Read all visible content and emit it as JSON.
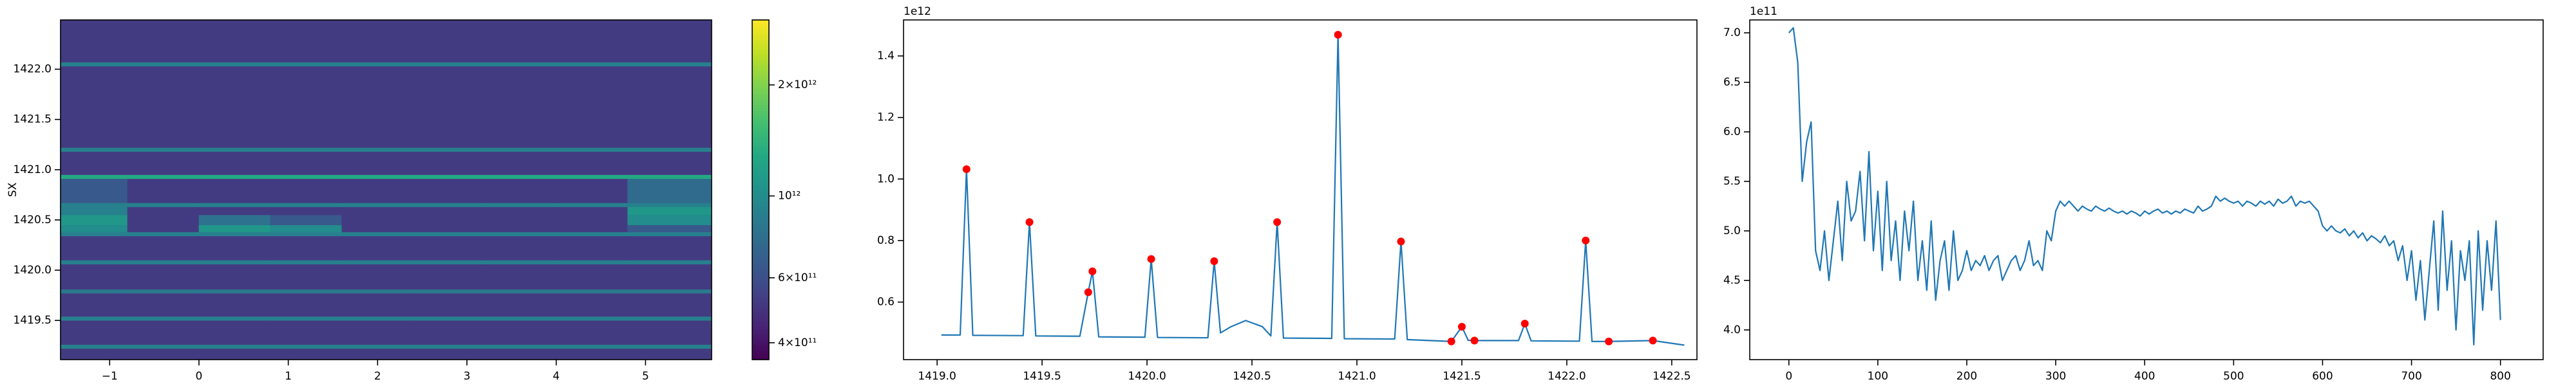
{
  "chart_data": [
    {
      "type": "heatmap",
      "ylabel": "SX",
      "xlim": [
        -1.55,
        5.74
      ],
      "ylim": [
        1419.11,
        1422.49
      ],
      "xticks": [
        {
          "value": -1,
          "label": "−1"
        },
        0,
        1,
        2,
        3,
        4,
        5
      ],
      "yticks": [
        1419.5,
        {
          "value": 1420,
          "label": "1420.0"
        },
        1420.5,
        {
          "value": 1421,
          "label": "1421.0"
        },
        1421.5,
        {
          "value": 1422,
          "label": "1422.0"
        }
      ],
      "colormap": "viridis",
      "x_edges": [
        -1.55,
        -0.8,
        0,
        0.8,
        1.6,
        2.4,
        3.2,
        4.0,
        4.8,
        5.74
      ],
      "y_edges": [
        1419.11,
        1419.22,
        1419.26,
        1419.5,
        1419.54,
        1419.77,
        1419.81,
        1420.06,
        1420.1,
        1420.34,
        1420.38,
        1420.45,
        1420.55,
        1420.63,
        1420.67,
        1420.91,
        1420.95,
        1421.18,
        1421.22,
        1422.03,
        1422.07,
        1422.49
      ],
      "z": [
        [
          520000000000.0,
          520000000000.0,
          520000000000.0,
          520000000000.0,
          520000000000.0,
          520000000000.0,
          520000000000.0,
          520000000000.0,
          520000000000.0
        ],
        [
          900000000000.0,
          900000000000.0,
          900000000000.0,
          900000000000.0,
          900000000000.0,
          900000000000.0,
          900000000000.0,
          900000000000.0,
          900000000000.0
        ],
        [
          520000000000.0,
          520000000000.0,
          520000000000.0,
          520000000000.0,
          520000000000.0,
          520000000000.0,
          520000000000.0,
          520000000000.0,
          520000000000.0
        ],
        [
          900000000000.0,
          900000000000.0,
          900000000000.0,
          900000000000.0,
          900000000000.0,
          900000000000.0,
          900000000000.0,
          900000000000.0,
          900000000000.0
        ],
        [
          520000000000.0,
          520000000000.0,
          520000000000.0,
          520000000000.0,
          520000000000.0,
          520000000000.0,
          520000000000.0,
          520000000000.0,
          520000000000.0
        ],
        [
          850000000000.0,
          850000000000.0,
          850000000000.0,
          850000000000.0,
          850000000000.0,
          850000000000.0,
          850000000000.0,
          850000000000.0,
          850000000000.0
        ],
        [
          520000000000.0,
          520000000000.0,
          520000000000.0,
          520000000000.0,
          520000000000.0,
          520000000000.0,
          520000000000.0,
          520000000000.0,
          520000000000.0
        ],
        [
          900000000000.0,
          900000000000.0,
          900000000000.0,
          900000000000.0,
          900000000000.0,
          900000000000.0,
          900000000000.0,
          900000000000.0,
          900000000000.0
        ],
        [
          520000000000.0,
          520000000000.0,
          520000000000.0,
          520000000000.0,
          520000000000.0,
          520000000000.0,
          520000000000.0,
          520000000000.0,
          520000000000.0
        ],
        [
          900000000000.0,
          900000000000.0,
          900000000000.0,
          900000000000.0,
          900000000000.0,
          900000000000.0,
          900000000000.0,
          900000000000.0,
          900000000000.0
        ],
        [
          1000000000000.0,
          520000000000.0,
          1100000000000.0,
          1000000000000.0,
          520000000000.0,
          520000000000.0,
          520000000000.0,
          520000000000.0,
          650000000000.0
        ],
        [
          1100000000000.0,
          520000000000.0,
          800000000000.0,
          650000000000.0,
          520000000000.0,
          520000000000.0,
          520000000000.0,
          520000000000.0,
          1000000000000.0
        ],
        [
          900000000000.0,
          520000000000.0,
          520000000000.0,
          520000000000.0,
          520000000000.0,
          520000000000.0,
          520000000000.0,
          520000000000.0,
          1100000000000.0
        ],
        [
          900000000000.0,
          900000000000.0,
          900000000000.0,
          900000000000.0,
          900000000000.0,
          900000000000.0,
          900000000000.0,
          900000000000.0,
          900000000000.0
        ],
        [
          650000000000.0,
          520000000000.0,
          520000000000.0,
          520000000000.0,
          520000000000.0,
          520000000000.0,
          520000000000.0,
          520000000000.0,
          750000000000.0
        ],
        [
          1300000000000.0,
          1300000000000.0,
          1300000000000.0,
          1300000000000.0,
          1300000000000.0,
          1300000000000.0,
          1300000000000.0,
          1300000000000.0,
          1300000000000.0
        ],
        [
          520000000000.0,
          520000000000.0,
          520000000000.0,
          520000000000.0,
          520000000000.0,
          520000000000.0,
          520000000000.0,
          520000000000.0,
          520000000000.0
        ],
        [
          900000000000.0,
          900000000000.0,
          900000000000.0,
          900000000000.0,
          900000000000.0,
          900000000000.0,
          900000000000.0,
          900000000000.0,
          900000000000.0
        ],
        [
          520000000000.0,
          520000000000.0,
          520000000000.0,
          520000000000.0,
          520000000000.0,
          520000000000.0,
          520000000000.0,
          520000000000.0,
          520000000000.0
        ],
        [
          900000000000.0,
          900000000000.0,
          900000000000.0,
          900000000000.0,
          900000000000.0,
          900000000000.0,
          900000000000.0,
          900000000000.0,
          900000000000.0
        ],
        [
          520000000000.0,
          520000000000.0,
          520000000000.0,
          520000000000.0,
          520000000000.0,
          520000000000.0,
          520000000000.0,
          520000000000.0,
          520000000000.0
        ]
      ],
      "colorbar": {
        "scale": "log",
        "lim": [
          360000000000.0,
          3000000000000.0
        ],
        "ticks": [
          {
            "value": 400000000000.0,
            "label": "4×10¹¹"
          },
          {
            "value": 600000000000.0,
            "label": "6×10¹¹"
          },
          {
            "value": 1000000000000.0,
            "label": "10¹²"
          },
          {
            "value": 2000000000000.0,
            "label": "2×10¹²"
          }
        ]
      }
    },
    {
      "type": "line",
      "offset_text": "1e12",
      "xlim": [
        1418.84,
        1422.62
      ],
      "ylim": [
        0.413,
        1.517
      ],
      "xticks": [
        {
          "value": 1419,
          "label": "1419.0"
        },
        1419.5,
        {
          "value": 1420,
          "label": "1420.0"
        },
        1420.5,
        {
          "value": 1421,
          "label": "1421.0"
        },
        1421.5,
        {
          "value": 1422,
          "label": "1422.0"
        },
        1422.5
      ],
      "yticks": [
        0.6,
        0.8,
        {
          "value": 1,
          "label": "1.0"
        },
        1.2,
        1.4
      ],
      "series": [
        {
          "color": "#1f77b4",
          "x": [
            1419.02,
            1419.11,
            1419.14,
            1419.17,
            1419.41,
            1419.44,
            1419.47,
            1419.68,
            1419.72,
            1419.74,
            1419.77,
            1419.99,
            1420.02,
            1420.05,
            1420.29,
            1420.32,
            1420.35,
            1420.4,
            1420.47,
            1420.55,
            1420.59,
            1420.62,
            1420.65,
            1420.88,
            1420.91,
            1420.94,
            1421.18,
            1421.21,
            1421.24,
            1421.45,
            1421.5,
            1421.53,
            1421.56,
            1421.77,
            1421.8,
            1421.83,
            1422.06,
            1422.09,
            1422.12,
            1422.2,
            1422.41,
            1422.56
          ],
          "values": [
            0.493,
            0.493,
            1.032,
            0.492,
            0.491,
            0.86,
            0.49,
            0.489,
            0.632,
            0.7,
            0.487,
            0.486,
            0.74,
            0.485,
            0.484,
            0.733,
            0.5,
            0.52,
            0.54,
            0.52,
            0.49,
            0.86,
            0.483,
            0.482,
            1.469,
            0.481,
            0.48,
            0.797,
            0.478,
            0.472,
            0.52,
            0.476,
            0.475,
            0.475,
            0.53,
            0.474,
            0.473,
            0.8,
            0.472,
            0.472,
            0.475,
            0.46
          ]
        },
        {
          "color": "red",
          "marker": "circle",
          "x": [
            1419.14,
            1419.44,
            1419.72,
            1419.74,
            1420.02,
            1420.32,
            1420.62,
            1420.91,
            1421.21,
            1421.45,
            1421.5,
            1421.56,
            1421.8,
            1422.09,
            1422.2,
            1422.41
          ],
          "values": [
            1.032,
            0.86,
            0.632,
            0.7,
            0.74,
            0.733,
            0.86,
            1.469,
            0.797,
            0.472,
            0.52,
            0.475,
            0.53,
            0.8,
            0.472,
            0.475
          ]
        }
      ]
    },
    {
      "type": "line",
      "offset_text": "1e11",
      "xlim": [
        -44,
        848
      ],
      "ylim": [
        3.7,
        7.13
      ],
      "xticks": [
        0,
        100,
        200,
        300,
        400,
        500,
        600,
        700,
        800
      ],
      "yticks": [
        {
          "value": 4,
          "label": "4.0"
        },
        4.5,
        {
          "value": 5,
          "label": "5.0"
        },
        5.5,
        {
          "value": 6,
          "label": "6.0"
        },
        6.5,
        {
          "value": 7,
          "label": "7.0"
        }
      ],
      "series": [
        {
          "color": "#1f77b4",
          "x": [
            0,
            5,
            10,
            15,
            20,
            25,
            30,
            35,
            40,
            45,
            50,
            55,
            60,
            65,
            70,
            75,
            80,
            85,
            90,
            95,
            100,
            105,
            110,
            115,
            120,
            125,
            130,
            135,
            140,
            145,
            150,
            155,
            160,
            165,
            170,
            175,
            180,
            185,
            190,
            195,
            200,
            205,
            210,
            215,
            220,
            225,
            230,
            235,
            240,
            245,
            250,
            255,
            260,
            265,
            270,
            275,
            280,
            285,
            290,
            295,
            300,
            305,
            310,
            315,
            320,
            325,
            330,
            335,
            340,
            345,
            350,
            355,
            360,
            365,
            370,
            375,
            380,
            385,
            390,
            395,
            400,
            405,
            410,
            415,
            420,
            425,
            430,
            435,
            440,
            445,
            450,
            455,
            460,
            465,
            470,
            475,
            480,
            485,
            490,
            495,
            500,
            505,
            510,
            515,
            520,
            525,
            530,
            535,
            540,
            545,
            550,
            555,
            560,
            565,
            570,
            575,
            580,
            585,
            590,
            595,
            600,
            605,
            610,
            615,
            620,
            625,
            630,
            635,
            640,
            645,
            650,
            655,
            660,
            665,
            670,
            675,
            680,
            685,
            690,
            695,
            700,
            705,
            710,
            715,
            720,
            725,
            730,
            735,
            740,
            745,
            750,
            755,
            760,
            765,
            770,
            775,
            780,
            785,
            790,
            795,
            800
          ],
          "values": [
            7.0,
            7.05,
            6.7,
            5.5,
            5.9,
            6.1,
            4.8,
            4.6,
            5.0,
            4.5,
            4.9,
            5.3,
            4.7,
            5.5,
            5.1,
            5.2,
            5.6,
            4.9,
            5.8,
            4.8,
            5.4,
            4.6,
            5.5,
            4.7,
            5.1,
            4.5,
            5.2,
            4.8,
            5.3,
            4.5,
            4.9,
            4.4,
            5.1,
            4.3,
            4.7,
            4.9,
            4.4,
            5.0,
            4.5,
            4.6,
            4.8,
            4.6,
            4.7,
            4.65,
            4.75,
            4.6,
            4.7,
            4.75,
            4.5,
            4.6,
            4.7,
            4.75,
            4.6,
            4.7,
            4.9,
            4.65,
            4.7,
            4.6,
            5.0,
            4.9,
            5.2,
            5.3,
            5.25,
            5.3,
            5.25,
            5.2,
            5.25,
            5.22,
            5.2,
            5.25,
            5.22,
            5.2,
            5.23,
            5.2,
            5.18,
            5.2,
            5.17,
            5.2,
            5.18,
            5.15,
            5.2,
            5.17,
            5.2,
            5.22,
            5.18,
            5.2,
            5.17,
            5.2,
            5.18,
            5.22,
            5.2,
            5.18,
            5.25,
            5.2,
            5.22,
            5.25,
            5.35,
            5.3,
            5.33,
            5.3,
            5.28,
            5.3,
            5.25,
            5.3,
            5.28,
            5.25,
            5.3,
            5.27,
            5.3,
            5.25,
            5.32,
            5.28,
            5.3,
            5.35,
            5.25,
            5.3,
            5.28,
            5.3,
            5.25,
            5.2,
            5.05,
            5.0,
            5.05,
            5.0,
            4.98,
            5.02,
            4.95,
            5.0,
            4.93,
            4.98,
            4.9,
            4.95,
            4.92,
            4.88,
            4.95,
            4.85,
            4.9,
            4.7,
            4.85,
            4.5,
            4.8,
            4.3,
            4.7,
            4.1,
            4.6,
            5.1,
            4.2,
            5.2,
            4.4,
            4.9,
            4.0,
            4.8,
            4.5,
            4.9,
            3.85,
            5.0,
            4.2,
            4.9,
            4.4,
            5.1,
            4.1
          ]
        }
      ]
    }
  ]
}
